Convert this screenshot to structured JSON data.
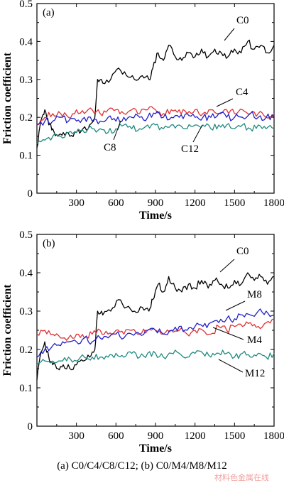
{
  "caption": "(a) C0/C4/C8/C12; (b) C0/M4/M8/M12",
  "watermark": "材料色金属在线",
  "colors": {
    "C0": "#000000",
    "red": "#e03030",
    "blue": "#2020c8",
    "teal": "#208a80"
  },
  "chart_data": [
    {
      "type": "line",
      "panel": "(a)",
      "xlabel": "Time/s",
      "ylabel": "Friction coefficient",
      "xlim": [
        0,
        1800
      ],
      "ylim": [
        0,
        0.5
      ],
      "xticks": [
        300,
        600,
        900,
        1200,
        1500,
        1800
      ],
      "yticks": [
        0,
        0.1,
        0.2,
        0.3,
        0.4,
        0.5
      ],
      "series": [
        {
          "name": "C0",
          "color": "#000000",
          "x": [
            0,
            30,
            60,
            90,
            120,
            160,
            200,
            250,
            300,
            350,
            400,
            440,
            460,
            500,
            560,
            620,
            680,
            740,
            800,
            850,
            880,
            920,
            960,
            1000,
            1050,
            1100,
            1150,
            1200,
            1250,
            1300,
            1350,
            1400,
            1450,
            1500,
            1550,
            1600,
            1650,
            1700,
            1750,
            1800
          ],
          "values": [
            0.12,
            0.19,
            0.22,
            0.18,
            0.17,
            0.15,
            0.16,
            0.15,
            0.16,
            0.17,
            0.18,
            0.2,
            0.3,
            0.29,
            0.3,
            0.33,
            0.31,
            0.3,
            0.31,
            0.3,
            0.33,
            0.37,
            0.35,
            0.39,
            0.36,
            0.35,
            0.37,
            0.36,
            0.38,
            0.36,
            0.38,
            0.37,
            0.36,
            0.38,
            0.37,
            0.4,
            0.38,
            0.39,
            0.37,
            0.39
          ]
        },
        {
          "name": "C4",
          "color": "#e03030",
          "x": [
            0,
            60,
            120,
            180,
            240,
            300,
            360,
            420,
            480,
            540,
            600,
            660,
            720,
            780,
            840,
            900,
            960,
            1020,
            1080,
            1140,
            1200,
            1260,
            1320,
            1380,
            1440,
            1500,
            1560,
            1620,
            1680,
            1740,
            1800
          ],
          "values": [
            0.18,
            0.2,
            0.21,
            0.21,
            0.2,
            0.22,
            0.21,
            0.22,
            0.21,
            0.22,
            0.22,
            0.21,
            0.22,
            0.21,
            0.22,
            0.22,
            0.21,
            0.22,
            0.22,
            0.21,
            0.22,
            0.21,
            0.22,
            0.21,
            0.22,
            0.21,
            0.22,
            0.21,
            0.21,
            0.2,
            0.21
          ]
        },
        {
          "name": "C8",
          "color": "#2020c8",
          "x": [
            0,
            60,
            120,
            180,
            240,
            300,
            360,
            420,
            480,
            540,
            600,
            660,
            720,
            780,
            840,
            900,
            960,
            1020,
            1080,
            1140,
            1200,
            1260,
            1320,
            1380,
            1440,
            1500,
            1560,
            1620,
            1680,
            1740,
            1800
          ],
          "values": [
            0.18,
            0.19,
            0.19,
            0.2,
            0.19,
            0.19,
            0.2,
            0.19,
            0.19,
            0.2,
            0.19,
            0.2,
            0.2,
            0.2,
            0.2,
            0.21,
            0.2,
            0.2,
            0.2,
            0.21,
            0.2,
            0.2,
            0.2,
            0.21,
            0.2,
            0.2,
            0.2,
            0.21,
            0.2,
            0.2,
            0.2
          ]
        },
        {
          "name": "C12",
          "color": "#208a80",
          "x": [
            0,
            60,
            120,
            180,
            240,
            300,
            360,
            420,
            480,
            540,
            600,
            660,
            720,
            780,
            840,
            900,
            960,
            1020,
            1080,
            1140,
            1200,
            1260,
            1320,
            1380,
            1440,
            1500,
            1560,
            1620,
            1680,
            1740,
            1800
          ],
          "values": [
            0.13,
            0.14,
            0.15,
            0.15,
            0.16,
            0.16,
            0.16,
            0.17,
            0.17,
            0.16,
            0.17,
            0.18,
            0.17,
            0.17,
            0.18,
            0.18,
            0.17,
            0.18,
            0.18,
            0.17,
            0.18,
            0.18,
            0.17,
            0.18,
            0.18,
            0.17,
            0.18,
            0.17,
            0.18,
            0.17,
            0.17
          ]
        }
      ],
      "annotations": [
        {
          "text": "C0",
          "series": "C0"
        },
        {
          "text": "C4",
          "series": "C4"
        },
        {
          "text": "C8",
          "series": "C8"
        },
        {
          "text": "C12",
          "series": "C12"
        }
      ]
    },
    {
      "type": "line",
      "panel": "(b)",
      "xlabel": "Time/s",
      "ylabel": "Friction coefficient",
      "xlim": [
        0,
        1800
      ],
      "ylim": [
        0,
        0.5
      ],
      "xticks": [
        300,
        600,
        900,
        1200,
        1500,
        1800
      ],
      "yticks": [
        0,
        0.1,
        0.2,
        0.3,
        0.4,
        0.5
      ],
      "series": [
        {
          "name": "C0",
          "color": "#000000",
          "x": [
            0,
            30,
            60,
            90,
            120,
            160,
            200,
            250,
            300,
            350,
            400,
            440,
            460,
            500,
            560,
            620,
            680,
            740,
            800,
            850,
            880,
            920,
            960,
            1000,
            1050,
            1100,
            1150,
            1200,
            1250,
            1300,
            1350,
            1400,
            1450,
            1500,
            1550,
            1600,
            1650,
            1700,
            1750,
            1800
          ],
          "values": [
            0.12,
            0.19,
            0.22,
            0.18,
            0.16,
            0.15,
            0.16,
            0.15,
            0.16,
            0.17,
            0.18,
            0.2,
            0.3,
            0.29,
            0.3,
            0.33,
            0.31,
            0.3,
            0.31,
            0.3,
            0.33,
            0.37,
            0.35,
            0.39,
            0.36,
            0.35,
            0.37,
            0.36,
            0.38,
            0.36,
            0.38,
            0.37,
            0.36,
            0.38,
            0.37,
            0.4,
            0.38,
            0.39,
            0.37,
            0.39
          ]
        },
        {
          "name": "M4",
          "color": "#e03030",
          "x": [
            0,
            60,
            120,
            180,
            240,
            300,
            360,
            420,
            480,
            540,
            600,
            660,
            720,
            780,
            840,
            900,
            960,
            1020,
            1080,
            1140,
            1200,
            1260,
            1320,
            1380,
            1440,
            1500,
            1560,
            1620,
            1680,
            1740,
            1800
          ],
          "values": [
            0.24,
            0.25,
            0.24,
            0.23,
            0.23,
            0.24,
            0.23,
            0.24,
            0.25,
            0.24,
            0.25,
            0.24,
            0.25,
            0.24,
            0.25,
            0.25,
            0.24,
            0.25,
            0.25,
            0.24,
            0.25,
            0.25,
            0.24,
            0.26,
            0.25,
            0.26,
            0.26,
            0.27,
            0.26,
            0.27,
            0.28
          ]
        },
        {
          "name": "M8",
          "color": "#2020c8",
          "x": [
            0,
            60,
            120,
            180,
            240,
            300,
            360,
            420,
            480,
            540,
            600,
            660,
            720,
            780,
            840,
            900,
            960,
            1020,
            1080,
            1140,
            1200,
            1260,
            1320,
            1380,
            1440,
            1500,
            1560,
            1620,
            1680,
            1740,
            1800
          ],
          "values": [
            0.18,
            0.2,
            0.21,
            0.21,
            0.22,
            0.22,
            0.23,
            0.22,
            0.23,
            0.23,
            0.24,
            0.23,
            0.24,
            0.24,
            0.25,
            0.25,
            0.24,
            0.25,
            0.26,
            0.25,
            0.26,
            0.26,
            0.27,
            0.27,
            0.28,
            0.28,
            0.29,
            0.29,
            0.3,
            0.3,
            0.29
          ]
        },
        {
          "name": "M12",
          "color": "#208a80",
          "x": [
            0,
            60,
            120,
            180,
            240,
            300,
            360,
            420,
            480,
            540,
            600,
            660,
            720,
            780,
            840,
            900,
            960,
            1020,
            1080,
            1140,
            1200,
            1260,
            1320,
            1380,
            1440,
            1500,
            1560,
            1620,
            1680,
            1740,
            1800
          ],
          "values": [
            0.16,
            0.17,
            0.17,
            0.17,
            0.18,
            0.17,
            0.18,
            0.18,
            0.18,
            0.18,
            0.19,
            0.18,
            0.19,
            0.18,
            0.19,
            0.19,
            0.18,
            0.19,
            0.19,
            0.18,
            0.19,
            0.19,
            0.18,
            0.19,
            0.19,
            0.18,
            0.19,
            0.18,
            0.19,
            0.18,
            0.19
          ]
        }
      ],
      "annotations": [
        {
          "text": "C0",
          "series": "C0"
        },
        {
          "text": "M8",
          "series": "M8"
        },
        {
          "text": "M4",
          "series": "M4"
        },
        {
          "text": "M12",
          "series": "M12"
        }
      ]
    }
  ]
}
